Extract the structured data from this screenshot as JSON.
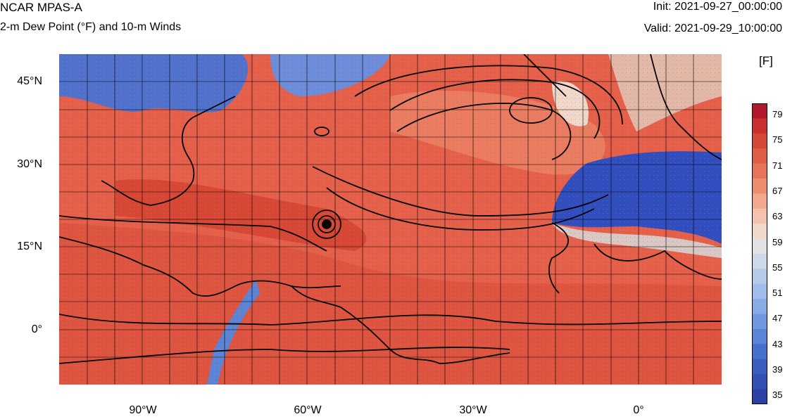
{
  "header": {
    "model": "NCAR MPAS-A",
    "field": "2-m Dew Point (°F) and 10-m Winds",
    "init": "Init: 2021-09-27_00:00:00",
    "valid": "Valid: 2021-09-29_10:00:00"
  },
  "axes": {
    "lat_labels": [
      "45°N",
      "30°N",
      "15°N",
      "0°"
    ],
    "lon_labels": [
      "90°W",
      "60°W",
      "30°W",
      "0°"
    ]
  },
  "colorbar": {
    "units": "[F]",
    "labels": [
      "79",
      "75",
      "71",
      "67",
      "63",
      "59",
      "55",
      "51",
      "47",
      "43",
      "39",
      "35"
    ],
    "colors": [
      "#b2182b",
      "#c8312f",
      "#d6473a",
      "#e05c45",
      "#e7735a",
      "#ee8c70",
      "#f3a78c",
      "#f4c2ad",
      "#f0d8cc",
      "#e2e2e2",
      "#cdd8e8",
      "#b6cbeb",
      "#9fbcea",
      "#88abe6",
      "#7098e0",
      "#5a84d6",
      "#4570cb",
      "#3a5ec0",
      "#3250b5",
      "#2a42a8"
    ]
  },
  "map": {
    "legend_colors": {
      "warm": "#e4604a",
      "hot": "#d2412f",
      "cool": "#4f72cf",
      "cold": "#2f4fc0",
      "neutral": "#e8d8d0"
    }
  }
}
